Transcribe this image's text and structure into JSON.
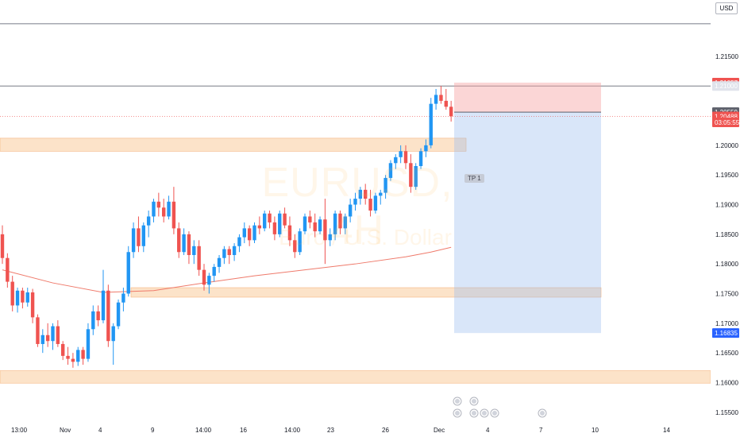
{
  "header": {
    "currency": "USD"
  },
  "watermark": {
    "symbol": "EURUSD, 4H",
    "description": "Euro / U.S. Dollar"
  },
  "trade": {
    "tp_label": "TP 1",
    "entry": 1.20559,
    "stop": 1.21057,
    "target": 1.16835
  },
  "price_labels": [
    {
      "value": 1.21057,
      "text": "1.21057",
      "color": "#ef5350"
    },
    {
      "value": 1.21,
      "text": "1.21000",
      "color": "#e0e3eb"
    },
    {
      "value": 1.20559,
      "text": "1.20559",
      "color": "#5d606b"
    },
    {
      "value": 1.20488,
      "text": "1.20488",
      "color": "#ef5350"
    },
    {
      "value": 1.20387,
      "text": "03:05:55",
      "color": "#ef5350"
    },
    {
      "value": 1.16835,
      "text": "1.16835",
      "color": "#2962ff"
    }
  ],
  "colors": {
    "up": "#2196f3",
    "down": "#ef5350",
    "zone": "#fbd9b7",
    "ma": "#ef7a6b"
  },
  "chart_data": {
    "type": "candlestick",
    "title": "",
    "symbol": "EURUSD",
    "timeframe": "4H",
    "ylim": [
      1.1535,
      1.2245
    ],
    "y_ticks": [
      "1.15500",
      "1.16000",
      "1.16500",
      "1.17000",
      "1.17500",
      "1.18000",
      "1.18500",
      "1.19000",
      "1.19500",
      "1.20000",
      "1.20500",
      "1.21000",
      "1.21500"
    ],
    "x_ticks": [
      "13:00",
      "Nov",
      "4",
      "9",
      "14:00",
      "16",
      "14:00",
      "23",
      "26",
      "Dec",
      "4",
      "7",
      "10",
      "14"
    ],
    "candles": [
      [
        1.185,
        1.1865,
        1.18,
        1.181
      ],
      [
        1.181,
        1.1818,
        1.176,
        1.177
      ],
      [
        1.177,
        1.178,
        1.172,
        1.173
      ],
      [
        1.173,
        1.176,
        1.1718,
        1.1755
      ],
      [
        1.1755,
        1.176,
        1.1725,
        1.1735
      ],
      [
        1.1735,
        1.176,
        1.1728,
        1.1752
      ],
      [
        1.1752,
        1.1758,
        1.17,
        1.171
      ],
      [
        1.171,
        1.1715,
        1.166,
        1.1665
      ],
      [
        1.1665,
        1.169,
        1.165,
        1.168
      ],
      [
        1.168,
        1.17,
        1.166,
        1.167
      ],
      [
        1.167,
        1.17,
        1.1655,
        1.1695
      ],
      [
        1.1695,
        1.1705,
        1.166,
        1.1665
      ],
      [
        1.1665,
        1.167,
        1.1638,
        1.1645
      ],
      [
        1.1645,
        1.166,
        1.163,
        1.164
      ],
      [
        1.164,
        1.165,
        1.1625,
        1.1635
      ],
      [
        1.1635,
        1.166,
        1.1628,
        1.1655
      ],
      [
        1.1655,
        1.166,
        1.163,
        1.164
      ],
      [
        1.164,
        1.17,
        1.1635,
        1.169
      ],
      [
        1.169,
        1.173,
        1.168,
        1.172
      ],
      [
        1.172,
        1.173,
        1.1695,
        1.1705
      ],
      [
        1.1705,
        1.179,
        1.17,
        1.1755
      ],
      [
        1.1755,
        1.1765,
        1.166,
        1.167
      ],
      [
        1.167,
        1.17,
        1.163,
        1.1695
      ],
      [
        1.1695,
        1.174,
        1.169,
        1.1735
      ],
      [
        1.1735,
        1.176,
        1.172,
        1.175
      ],
      [
        1.175,
        1.183,
        1.1745,
        1.182
      ],
      [
        1.182,
        1.187,
        1.181,
        1.186
      ],
      [
        1.186,
        1.188,
        1.182,
        1.183
      ],
      [
        1.183,
        1.187,
        1.182,
        1.1865
      ],
      [
        1.1865,
        1.189,
        1.1845,
        1.188
      ],
      [
        1.188,
        1.191,
        1.187,
        1.1905
      ],
      [
        1.1905,
        1.192,
        1.188,
        1.1895
      ],
      [
        1.1895,
        1.191,
        1.187,
        1.188
      ],
      [
        1.188,
        1.1915,
        1.1875,
        1.1905
      ],
      [
        1.1905,
        1.193,
        1.185,
        1.186
      ],
      [
        1.186,
        1.187,
        1.181,
        1.182
      ],
      [
        1.182,
        1.186,
        1.1815,
        1.185
      ],
      [
        1.185,
        1.1855,
        1.18,
        1.1815
      ],
      [
        1.1815,
        1.184,
        1.18,
        1.183
      ],
      [
        1.183,
        1.184,
        1.178,
        1.179
      ],
      [
        1.179,
        1.18,
        1.1755,
        1.1765
      ],
      [
        1.1765,
        1.1785,
        1.175,
        1.178
      ],
      [
        1.178,
        1.18,
        1.177,
        1.1795
      ],
      [
        1.1795,
        1.1815,
        1.1785,
        1.181
      ],
      [
        1.181,
        1.183,
        1.18,
        1.1825
      ],
      [
        1.1825,
        1.183,
        1.18,
        1.1815
      ],
      [
        1.1815,
        1.1835,
        1.1805,
        1.183
      ],
      [
        1.183,
        1.185,
        1.182,
        1.1845
      ],
      [
        1.1845,
        1.187,
        1.1835,
        1.186
      ],
      [
        1.186,
        1.1865,
        1.183,
        1.184
      ],
      [
        1.184,
        1.187,
        1.1835,
        1.1865
      ],
      [
        1.1865,
        1.188,
        1.185,
        1.186
      ],
      [
        1.186,
        1.189,
        1.1855,
        1.1885
      ],
      [
        1.1885,
        1.189,
        1.186,
        1.187
      ],
      [
        1.187,
        1.188,
        1.184,
        1.185
      ],
      [
        1.185,
        1.189,
        1.1845,
        1.1885
      ],
      [
        1.1885,
        1.1895,
        1.186,
        1.1865
      ],
      [
        1.1865,
        1.188,
        1.183,
        1.184
      ],
      [
        1.184,
        1.185,
        1.181,
        1.182
      ],
      [
        1.182,
        1.186,
        1.1815,
        1.1855
      ],
      [
        1.1855,
        1.1885,
        1.185,
        1.188
      ],
      [
        1.188,
        1.189,
        1.186,
        1.187
      ],
      [
        1.187,
        1.1885,
        1.1845,
        1.1855
      ],
      [
        1.1855,
        1.188,
        1.185,
        1.1875
      ],
      [
        1.1875,
        1.191,
        1.18,
        1.184
      ],
      [
        1.184,
        1.186,
        1.183,
        1.185
      ],
      [
        1.185,
        1.189,
        1.184,
        1.1885
      ],
      [
        1.1885,
        1.189,
        1.185,
        1.186
      ],
      [
        1.186,
        1.1885,
        1.185,
        1.188
      ],
      [
        1.188,
        1.191,
        1.187,
        1.19
      ],
      [
        1.19,
        1.192,
        1.189,
        1.191
      ],
      [
        1.191,
        1.193,
        1.19,
        1.1925
      ],
      [
        1.1925,
        1.1935,
        1.19,
        1.191
      ],
      [
        1.191,
        1.1925,
        1.188,
        1.189
      ],
      [
        1.189,
        1.192,
        1.1885,
        1.1915
      ],
      [
        1.1915,
        1.1925,
        1.19,
        1.192
      ],
      [
        1.192,
        1.195,
        1.191,
        1.1945
      ],
      [
        1.1945,
        1.1975,
        1.194,
        1.197
      ],
      [
        1.197,
        1.1985,
        1.196,
        1.198
      ],
      [
        1.198,
        1.2,
        1.197,
        1.199
      ],
      [
        1.199,
        1.2,
        1.196,
        1.197
      ],
      [
        1.197,
        1.1985,
        1.192,
        1.193
      ],
      [
        1.193,
        1.197,
        1.1925,
        1.1965
      ],
      [
        1.1965,
        1.1995,
        1.196,
        1.199
      ],
      [
        1.199,
        1.201,
        1.198,
        1.2
      ],
      [
        1.2,
        1.208,
        1.1995,
        1.207
      ],
      [
        1.207,
        1.2095,
        1.206,
        1.2085
      ],
      [
        1.2085,
        1.21,
        1.207,
        1.2075
      ],
      [
        1.2075,
        1.2095,
        1.206,
        1.2065
      ],
      [
        1.2065,
        1.2075,
        1.204,
        1.2049
      ]
    ],
    "series": [
      {
        "name": "",
        "type": "line",
        "points": [
          [
            0,
            1.179
          ],
          [
            10,
            1.1768
          ],
          [
            20,
            1.1752
          ],
          [
            30,
            1.1755
          ],
          [
            40,
            1.1768
          ],
          [
            50,
            1.178
          ],
          [
            60,
            1.179
          ],
          [
            70,
            1.18
          ],
          [
            80,
            1.1812
          ],
          [
            85,
            1.182
          ],
          [
            89,
            1.1828
          ]
        ]
      }
    ],
    "zones": [
      {
        "from": 1.199,
        "to": 1.2012
      },
      {
        "from": 1.1744,
        "to": 1.176
      },
      {
        "from": 1.1599,
        "to": 1.162
      }
    ],
    "lines": [
      1.2205,
      1.21
    ]
  }
}
